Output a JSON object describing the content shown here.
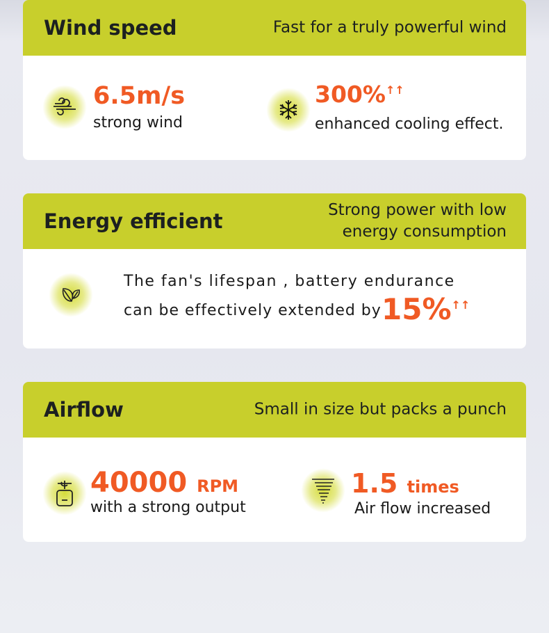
{
  "colors": {
    "header": "#c8cf2c",
    "accent": "#f05a24"
  },
  "sections": [
    {
      "title": "Wind speed",
      "subtitle": "Fast for a truly powerful wind",
      "stats": [
        {
          "icon": "wind-icon",
          "value": "6.5m/s",
          "label": "strong wind"
        },
        {
          "icon": "snowflake-icon",
          "value": "300%",
          "arrows": "↑↑",
          "label": "enhanced cooling effect."
        }
      ]
    },
    {
      "title": "Energy efficient",
      "subtitle_line1": "Strong power with low",
      "subtitle_line2": "energy consumption",
      "icon": "leaf-icon",
      "line1": "The fan's lifespan , battery endurance",
      "line2": "can be effectively extended by",
      "value": "15%",
      "arrows": "↑↑"
    },
    {
      "title": "Airflow",
      "subtitle": "Small in size but packs a punch",
      "stats": [
        {
          "icon": "fan-motor-icon",
          "value": "40000",
          "unit": "RPM",
          "label": "with a strong output"
        },
        {
          "icon": "tornado-icon",
          "value": "1.5",
          "unit": "times",
          "label": "Air flow increased"
        }
      ]
    }
  ]
}
